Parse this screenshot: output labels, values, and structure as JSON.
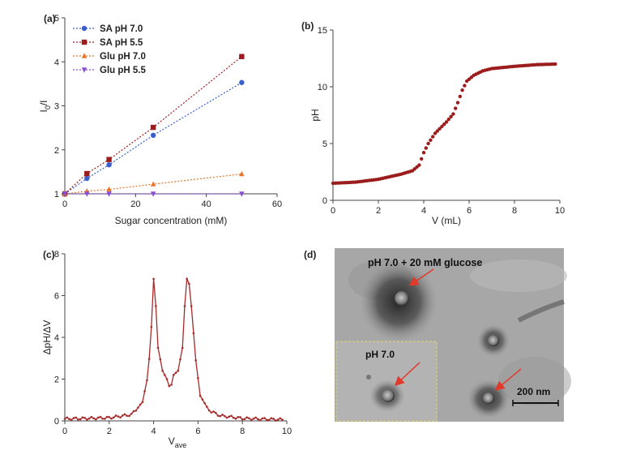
{
  "chart_data": [
    {
      "panel": "(a)",
      "type": "scatter",
      "xlabel": "Sugar concentration (mM)",
      "ylabel": "I",
      "ylabel_sub": "0",
      "ylabel_tail": "/I",
      "xlim": [
        0,
        60
      ],
      "ylim": [
        1,
        5
      ],
      "xticks": [
        "0",
        "20",
        "40",
        "60"
      ],
      "yticks": [
        "1",
        "2",
        "3",
        "4",
        "5"
      ],
      "legend_position": "top-left",
      "series": [
        {
          "name": "SA pH 7.0",
          "color": "#3a5fcd",
          "marker": "circle",
          "x": [
            0,
            6.25,
            12.5,
            25,
            50
          ],
          "y": [
            1.0,
            1.35,
            1.66,
            2.33,
            3.53
          ]
        },
        {
          "name": "SA pH 5.5",
          "color": "#9b1c1c",
          "marker": "square",
          "x": [
            0,
            6.25,
            12.5,
            25,
            50
          ],
          "y": [
            1.0,
            1.46,
            1.78,
            2.51,
            4.12
          ]
        },
        {
          "name": "Glu pH 7.0",
          "color": "#e8762c",
          "marker": "triangle-up",
          "x": [
            0,
            6.25,
            12.5,
            25,
            50
          ],
          "y": [
            1.0,
            1.06,
            1.1,
            1.22,
            1.45
          ]
        },
        {
          "name": "Glu pH 5.5",
          "color": "#8a4fd8",
          "marker": "triangle-down",
          "x": [
            0,
            6.25,
            12.5,
            25,
            50
          ],
          "y": [
            1.0,
            1.0,
            1.0,
            1.0,
            1.0
          ]
        }
      ]
    },
    {
      "panel": "(b)",
      "type": "scatter",
      "xlabel": "V (mL)",
      "ylabel": "pH",
      "xlim": [
        0,
        10
      ],
      "ylim": [
        0,
        15
      ],
      "xticks": [
        "0",
        "2",
        "4",
        "6",
        "8",
        "10"
      ],
      "yticks": [
        "0",
        "5",
        "10",
        "15"
      ],
      "color": "#9b1c1c",
      "x_step": 0.1,
      "x_range": [
        0,
        9.8
      ],
      "curve": [
        [
          0,
          1.5
        ],
        [
          1,
          1.6
        ],
        [
          2,
          1.85
        ],
        [
          3,
          2.3
        ],
        [
          3.5,
          2.6
        ],
        [
          3.8,
          3.1
        ],
        [
          4.0,
          4.2
        ],
        [
          4.2,
          5.0
        ],
        [
          4.5,
          5.9
        ],
        [
          5.0,
          6.9
        ],
        [
          5.3,
          7.6
        ],
        [
          5.5,
          8.6
        ],
        [
          5.7,
          9.7
        ],
        [
          5.9,
          10.5
        ],
        [
          6.2,
          11.0
        ],
        [
          6.6,
          11.4
        ],
        [
          7.0,
          11.6
        ],
        [
          8.0,
          11.8
        ],
        [
          9.0,
          11.95
        ],
        [
          9.8,
          12.0
        ]
      ]
    },
    {
      "panel": "(c)",
      "type": "line",
      "xlabel": "V",
      "xlabel_sub": "ave",
      "ylabel": "ΔpH/ΔV",
      "xlim": [
        0,
        10
      ],
      "ylim": [
        0,
        8
      ],
      "xticks": [
        "0",
        "2",
        "4",
        "6",
        "8",
        "10"
      ],
      "yticks": [
        "0",
        "2",
        "4",
        "6",
        "8"
      ],
      "color": "#a52a2a",
      "x_step": 0.1,
      "x_range": [
        0,
        9.8
      ],
      "curve": [
        [
          0,
          0.1
        ],
        [
          1.0,
          0.12
        ],
        [
          2.0,
          0.15
        ],
        [
          3.0,
          0.3
        ],
        [
          3.5,
          0.9
        ],
        [
          3.75,
          2.2
        ],
        [
          3.9,
          4.5
        ],
        [
          4.0,
          6.8
        ],
        [
          4.1,
          5.5
        ],
        [
          4.2,
          3.5
        ],
        [
          4.4,
          2.4
        ],
        [
          4.6,
          2.0
        ],
        [
          4.75,
          1.5
        ],
        [
          4.9,
          2.2
        ],
        [
          5.1,
          2.4
        ],
        [
          5.3,
          3.5
        ],
        [
          5.45,
          6.5
        ],
        [
          5.55,
          7.1
        ],
        [
          5.7,
          5.5
        ],
        [
          5.9,
          2.9
        ],
        [
          6.1,
          1.2
        ],
        [
          6.5,
          0.5
        ],
        [
          7.0,
          0.25
        ],
        [
          8.0,
          0.12
        ],
        [
          9.8,
          0.06
        ]
      ]
    }
  ],
  "panel_d": {
    "label": "(d)",
    "top_caption": "pH 7.0 + 20 mM glucose",
    "inset_caption": "pH 7.0",
    "scale_bar": "200 nm"
  }
}
